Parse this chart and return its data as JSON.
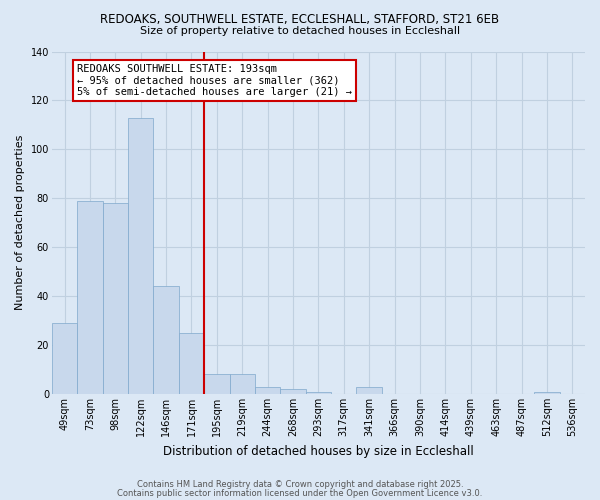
{
  "title1": "REDOAKS, SOUTHWELL ESTATE, ECCLESHALL, STAFFORD, ST21 6EB",
  "title2": "Size of property relative to detached houses in Eccleshall",
  "xlabel": "Distribution of detached houses by size in Eccleshall",
  "ylabel": "Number of detached properties",
  "categories": [
    "49sqm",
    "73sqm",
    "98sqm",
    "122sqm",
    "146sqm",
    "171sqm",
    "195sqm",
    "219sqm",
    "244sqm",
    "268sqm",
    "293sqm",
    "317sqm",
    "341sqm",
    "366sqm",
    "390sqm",
    "414sqm",
    "439sqm",
    "463sqm",
    "487sqm",
    "512sqm",
    "536sqm"
  ],
  "values": [
    29,
    79,
    78,
    113,
    44,
    25,
    8,
    8,
    3,
    2,
    1,
    0,
    3,
    0,
    0,
    0,
    0,
    0,
    0,
    1,
    0
  ],
  "bar_color": "#c8d8ec",
  "bar_edge_color": "#7fa8cc",
  "vline_x_index": 6,
  "vline_color": "#cc0000",
  "annotation_text": "REDOAKS SOUTHWELL ESTATE: 193sqm\n← 95% of detached houses are smaller (362)\n5% of semi-detached houses are larger (21) →",
  "box_color": "#cc0000",
  "ylim": [
    0,
    140
  ],
  "yticks": [
    0,
    20,
    40,
    60,
    80,
    100,
    120,
    140
  ],
  "footer1": "Contains HM Land Registry data © Crown copyright and database right 2025.",
  "footer2": "Contains public sector information licensed under the Open Government Licence v3.0.",
  "background_color": "#dce8f5",
  "grid_color": "#c0d0e0",
  "title_fontsize": 8.5,
  "subtitle_fontsize": 8.0,
  "ylabel_fontsize": 8.0,
  "xlabel_fontsize": 8.5,
  "tick_fontsize": 7.0,
  "annotation_fontsize": 7.5,
  "footer_fontsize": 6.0
}
